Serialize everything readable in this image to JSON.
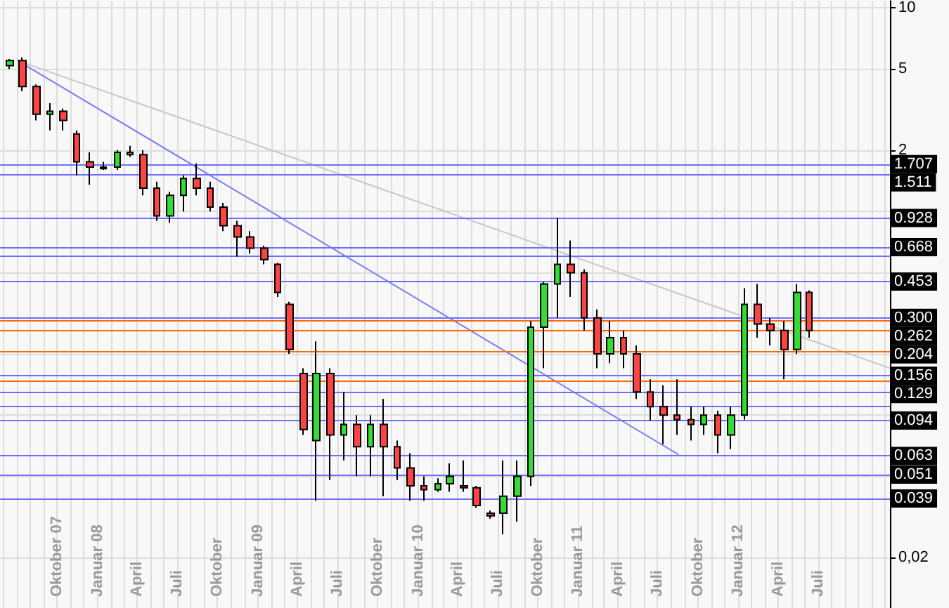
{
  "chart_data": {
    "type": "candlestick",
    "log": "y",
    "grid": true,
    "marker": "none",
    "xlim": [
      "2007-05-24",
      "2012-12-12"
    ],
    "ylim": [
      0.0113,
      10.8
    ],
    "yticks": [
      10,
      5,
      2,
      {
        "value": 1,
        "label": null
      },
      {
        "value": 0.5,
        "label": null
      },
      {
        "value": 0.2,
        "label": null
      },
      {
        "value": 0.1,
        "label": null
      },
      {
        "value": 0.05,
        "label": null
      },
      {
        "value": 0.02,
        "label": "0,02"
      }
    ],
    "xticks": [
      {
        "value": "2007-06-01",
        "label": null
      },
      {
        "value": "2007-07-01",
        "label": null
      },
      {
        "value": "2007-08-01",
        "label": null
      },
      {
        "value": "2007-09-01",
        "label": null
      },
      {
        "value": "2007-10-01",
        "label": "Oktober 07"
      },
      {
        "value": "2007-11-01",
        "label": null
      },
      {
        "value": "2007-12-01",
        "label": null
      },
      {
        "value": "2008-01-01",
        "label": "Januar 08"
      },
      {
        "value": "2008-02-01",
        "label": null
      },
      {
        "value": "2008-03-01",
        "label": null
      },
      {
        "value": "2008-04-01",
        "label": "April"
      },
      {
        "value": "2008-05-01",
        "label": null
      },
      {
        "value": "2008-06-01",
        "label": null
      },
      {
        "value": "2008-07-01",
        "label": "Juli"
      },
      {
        "value": "2008-08-01",
        "label": null
      },
      {
        "value": "2008-09-01",
        "label": null
      },
      {
        "value": "2008-10-01",
        "label": "Oktober"
      },
      {
        "value": "2008-11-01",
        "label": null
      },
      {
        "value": "2008-12-01",
        "label": null
      },
      {
        "value": "2009-01-01",
        "label": "Januar 09"
      },
      {
        "value": "2009-02-01",
        "label": null
      },
      {
        "value": "2009-03-01",
        "label": null
      },
      {
        "value": "2009-04-01",
        "label": "April"
      },
      {
        "value": "2009-05-01",
        "label": null
      },
      {
        "value": "2009-06-01",
        "label": null
      },
      {
        "value": "2009-07-01",
        "label": "Juli"
      },
      {
        "value": "2009-08-01",
        "label": null
      },
      {
        "value": "2009-09-01",
        "label": null
      },
      {
        "value": "2009-10-01",
        "label": "Oktober"
      },
      {
        "value": "2009-11-01",
        "label": null
      },
      {
        "value": "2009-12-01",
        "label": null
      },
      {
        "value": "2010-01-01",
        "label": "Januar 10"
      },
      {
        "value": "2010-02-01",
        "label": null
      },
      {
        "value": "2010-03-01",
        "label": null
      },
      {
        "value": "2010-04-01",
        "label": "April"
      },
      {
        "value": "2010-05-01",
        "label": null
      },
      {
        "value": "2010-06-01",
        "label": null
      },
      {
        "value": "2010-07-01",
        "label": "Juli"
      },
      {
        "value": "2010-08-01",
        "label": null
      },
      {
        "value": "2010-09-01",
        "label": null
      },
      {
        "value": "2010-10-01",
        "label": "Oktober"
      },
      {
        "value": "2010-11-01",
        "label": null
      },
      {
        "value": "2010-12-01",
        "label": null
      },
      {
        "value": "2011-01-01",
        "label": "Januar 11"
      },
      {
        "value": "2011-02-01",
        "label": null
      },
      {
        "value": "2011-03-01",
        "label": null
      },
      {
        "value": "2011-04-01",
        "label": "April"
      },
      {
        "value": "2011-05-01",
        "label": null
      },
      {
        "value": "2011-06-01",
        "label": null
      },
      {
        "value": "2011-07-01",
        "label": "Juli"
      },
      {
        "value": "2011-08-01",
        "label": null
      },
      {
        "value": "2011-09-01",
        "label": null
      },
      {
        "value": "2011-10-01",
        "label": "Oktober"
      },
      {
        "value": "2011-11-01",
        "label": null
      },
      {
        "value": "2011-12-01",
        "label": null
      },
      {
        "value": "2012-01-01",
        "label": "Januar 12"
      },
      {
        "value": "2012-02-01",
        "label": null
      },
      {
        "value": "2012-03-01",
        "label": null
      },
      {
        "value": "2012-04-01",
        "label": "April"
      },
      {
        "value": "2012-05-01",
        "label": null
      },
      {
        "value": "2012-06-01",
        "label": null
      },
      {
        "value": "2012-07-01",
        "label": "Juli"
      },
      {
        "value": "2012-08-01",
        "label": null
      },
      {
        "value": "2012-09-01",
        "label": null
      },
      {
        "value": "2012-10-01",
        "label": null
      },
      {
        "value": "2012-11-01",
        "label": null
      },
      {
        "value": "2012-12-01",
        "label": null
      }
    ],
    "x": [
      "2007-06-15",
      "2007-07-15",
      "2007-08-15",
      "2007-09-15",
      "2007-10-15",
      "2007-11-15",
      "2007-12-15",
      "2008-01-15",
      "2008-02-15",
      "2008-03-15",
      "2008-04-15",
      "2008-05-15",
      "2008-06-15",
      "2008-07-15",
      "2008-08-15",
      "2008-09-15",
      "2008-10-15",
      "2008-11-15",
      "2008-12-15",
      "2009-01-15",
      "2009-02-15",
      "2009-03-15",
      "2009-04-15",
      "2009-05-15",
      "2009-06-15",
      "2009-07-15",
      "2009-08-15",
      "2009-09-15",
      "2009-10-15",
      "2009-11-15",
      "2009-12-15",
      "2010-01-15",
      "2010-02-15",
      "2010-03-15",
      "2010-04-15",
      "2010-05-15",
      "2010-06-15",
      "2010-07-15",
      "2010-08-15",
      "2010-09-15",
      "2010-10-15",
      "2010-11-15",
      "2010-12-15",
      "2011-01-15",
      "2011-02-15",
      "2011-03-15",
      "2011-04-15",
      "2011-05-15",
      "2011-06-15",
      "2011-07-15",
      "2011-08-15",
      "2011-09-15",
      "2011-10-15",
      "2011-11-15",
      "2011-12-15",
      "2012-01-15",
      "2012-02-15",
      "2012-03-15",
      "2012-04-15",
      "2012-05-15",
      "2012-06-10"
    ],
    "ohlc": [
      [
        5.2,
        5.6,
        5.0,
        5.5
      ],
      [
        5.5,
        5.7,
        3.9,
        4.1
      ],
      [
        4.1,
        4.2,
        2.8,
        3.0
      ],
      [
        3.0,
        3.4,
        2.5,
        3.1
      ],
      [
        3.1,
        3.2,
        2.5,
        2.8
      ],
      [
        2.4,
        2.5,
        1.5,
        1.75
      ],
      [
        1.75,
        1.95,
        1.35,
        1.65
      ],
      [
        1.65,
        1.75,
        1.6,
        1.62
      ],
      [
        1.65,
        2.0,
        1.6,
        1.95
      ],
      [
        1.95,
        2.1,
        1.85,
        1.9
      ],
      [
        1.9,
        2.0,
        1.2,
        1.3
      ],
      [
        1.3,
        1.4,
        0.9,
        0.95
      ],
      [
        0.95,
        1.25,
        0.88,
        1.2
      ],
      [
        1.2,
        1.5,
        1.0,
        1.45
      ],
      [
        1.45,
        1.72,
        1.2,
        1.3
      ],
      [
        1.3,
        1.4,
        1.0,
        1.05
      ],
      [
        1.05,
        1.1,
        0.8,
        0.85
      ],
      [
        0.85,
        0.9,
        0.6,
        0.75
      ],
      [
        0.75,
        0.8,
        0.62,
        0.66
      ],
      [
        0.66,
        0.68,
        0.55,
        0.58
      ],
      [
        0.55,
        0.56,
        0.38,
        0.4
      ],
      [
        0.35,
        0.36,
        0.2,
        0.21
      ],
      [
        0.16,
        0.17,
        0.08,
        0.085
      ],
      [
        0.075,
        0.23,
        0.038,
        0.16
      ],
      [
        0.16,
        0.17,
        0.048,
        0.08
      ],
      [
        0.08,
        0.13,
        0.06,
        0.09
      ],
      [
        0.09,
        0.1,
        0.05,
        0.07
      ],
      [
        0.07,
        0.1,
        0.05,
        0.09
      ],
      [
        0.09,
        0.12,
        0.04,
        0.07
      ],
      [
        0.07,
        0.075,
        0.048,
        0.055
      ],
      [
        0.055,
        0.065,
        0.038,
        0.045
      ],
      [
        0.045,
        0.05,
        0.038,
        0.043
      ],
      [
        0.043,
        0.049,
        0.042,
        0.046
      ],
      [
        0.046,
        0.058,
        0.042,
        0.05
      ],
      [
        0.045,
        0.06,
        0.042,
        0.044
      ],
      [
        0.044,
        0.045,
        0.035,
        0.036
      ],
      [
        0.033,
        0.034,
        0.031,
        0.032
      ],
      [
        0.033,
        0.06,
        0.026,
        0.04
      ],
      [
        0.04,
        0.06,
        0.03,
        0.05
      ],
      [
        0.05,
        0.29,
        0.045,
        0.27
      ],
      [
        0.27,
        0.45,
        0.17,
        0.44
      ],
      [
        0.44,
        0.93,
        0.3,
        0.55
      ],
      [
        0.55,
        0.72,
        0.38,
        0.5
      ],
      [
        0.5,
        0.52,
        0.26,
        0.3
      ],
      [
        0.3,
        0.33,
        0.17,
        0.2
      ],
      [
        0.2,
        0.29,
        0.18,
        0.24
      ],
      [
        0.24,
        0.26,
        0.17,
        0.2
      ],
      [
        0.2,
        0.22,
        0.12,
        0.13
      ],
      [
        0.13,
        0.15,
        0.094,
        0.11
      ],
      [
        0.11,
        0.14,
        0.072,
        0.1
      ],
      [
        0.1,
        0.15,
        0.08,
        0.095
      ],
      [
        0.095,
        0.11,
        0.075,
        0.09
      ],
      [
        0.09,
        0.11,
        0.08,
        0.1
      ],
      [
        0.1,
        0.105,
        0.065,
        0.08
      ],
      [
        0.08,
        0.11,
        0.068,
        0.1
      ],
      [
        0.1,
        0.42,
        0.095,
        0.35
      ],
      [
        0.35,
        0.44,
        0.24,
        0.28
      ],
      [
        0.28,
        0.3,
        0.22,
        0.26
      ],
      [
        0.26,
        0.29,
        0.15,
        0.21
      ],
      [
        0.21,
        0.44,
        0.2,
        0.4
      ],
      [
        0.4,
        0.41,
        0.24,
        0.26
      ]
    ],
    "series": [
      {
        "type": "line",
        "color": "#c8c8c8",
        "x": [
          "2007-07-03",
          "2012-12-12"
        ],
        "values": [
          5.5,
          0.17
        ]
      },
      {
        "type": "line",
        "color": "#7b7bff",
        "x": [
          "2007-07-03",
          "2011-08-18"
        ],
        "values": [
          5.5,
          0.064
        ]
      }
    ],
    "ref_lines": [
      {
        "axis": "y",
        "value": 1.707,
        "label": "1.707",
        "color": "#6f6fff"
      },
      {
        "axis": "y",
        "value": 1.511,
        "label": "1.511",
        "color": "#6f6fff"
      },
      {
        "axis": "y",
        "value": 0.928,
        "label": "0.928",
        "color": "#6f6fff"
      },
      {
        "axis": "y",
        "value": 0.668,
        "label": "0.668",
        "color": "#6f6fff"
      },
      {
        "axis": "y",
        "value": 0.604,
        "color": "#6f6fff"
      },
      {
        "axis": "y",
        "value": 0.453,
        "label": "0.453",
        "color": "#6f6fff"
      },
      {
        "axis": "y",
        "value": 0.3,
        "label": "0.300",
        "color": "#6f6fff"
      },
      {
        "axis": "y",
        "value": 0.29,
        "color": "#ff6a00"
      },
      {
        "axis": "y",
        "value": 0.262,
        "label": "0.262",
        "color": "#ff6a00"
      },
      {
        "axis": "y",
        "value": 0.204,
        "label": "0.204",
        "color": "#ff6a00"
      },
      {
        "axis": "y",
        "value": 0.156,
        "label": "0.156",
        "color": "#6f6fff"
      },
      {
        "axis": "y",
        "value": 0.148,
        "color": "#ff6a00"
      },
      {
        "axis": "y",
        "value": 0.129,
        "label": "0.129",
        "color": "#6f6fff"
      },
      {
        "axis": "y",
        "value": 0.111,
        "color": "#6f6fff"
      },
      {
        "axis": "y",
        "value": 0.094,
        "label": "0.094",
        "color": "#6f6fff"
      },
      {
        "axis": "y",
        "value": 0.063,
        "label": "0.063",
        "color": "#6f6fff"
      },
      {
        "axis": "y",
        "value": 0.051,
        "label": "0.051",
        "color": "#6f6fff"
      },
      {
        "axis": "y",
        "value": 0.039,
        "label": "0.039",
        "color": "#6f6fff"
      }
    ]
  }
}
